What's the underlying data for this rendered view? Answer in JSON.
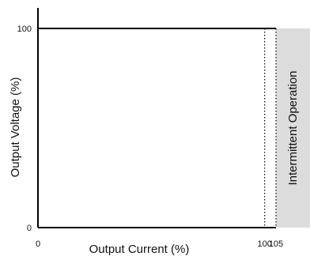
{
  "chart_data": {
    "type": "line",
    "xlabel": "Output Current (%)",
    "ylabel": "Output Voltage (%)",
    "xlim": [
      0,
      120
    ],
    "ylim": [
      0,
      100
    ],
    "x_ticks": [
      {
        "value": 0,
        "label": "0"
      },
      {
        "value": 100,
        "label": "100"
      },
      {
        "value": 105,
        "label": "105"
      }
    ],
    "y_ticks": [
      {
        "value": 0,
        "label": "0"
      },
      {
        "value": 100,
        "label": "100"
      }
    ],
    "series": [
      {
        "x": [
          0,
          105
        ],
        "y": [
          100,
          100
        ]
      }
    ],
    "reference_lines": [
      {
        "x": 100,
        "style": "dotted"
      },
      {
        "x": 105,
        "style": "dotted"
      }
    ],
    "shaded_region": {
      "x_start": 105,
      "x_end": 120,
      "y_start": 0,
      "y_end": 100,
      "color": "#dcdcdc",
      "label": "Intermittent Operation"
    },
    "grid": false,
    "legend": "none",
    "colors": {
      "line": "#000000",
      "axis": "#000000",
      "shade": "#dcdcdc"
    }
  }
}
